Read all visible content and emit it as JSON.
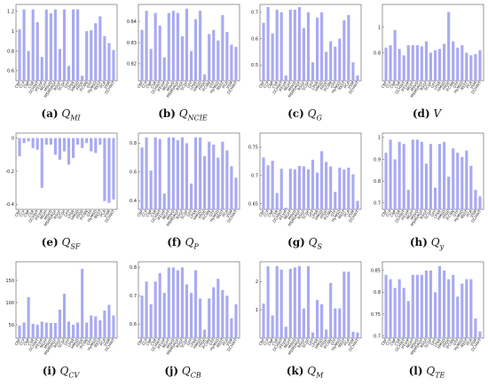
{
  "method_labels": [
    "CBF",
    "CCF",
    "CNP",
    "CSR",
    "DCHWT",
    "IFEVIP",
    "MGFF",
    "MSVD",
    "MSMSRGF",
    "RSGF",
    "SCDF",
    "GFF",
    "LPSR",
    "HMSD",
    "FPDE",
    "IFCNN",
    "GTF",
    "HyMSD",
    "NSST",
    "PCA",
    "VSM",
    "DCHWT"
  ],
  "chart_data": [
    {
      "type": "bar",
      "label": "(a)",
      "metric": "Q",
      "sub": "MI",
      "yticks": [
        0.6,
        0.8,
        1,
        1.2
      ],
      "ylim": [
        0.5,
        1.27
      ],
      "values": [
        1.02,
        1.22,
        0.8,
        1.22,
        1.09,
        0.74,
        1.22,
        1.18,
        1.22,
        0.82,
        1.22,
        0.65,
        1.22,
        1.22,
        0.55,
        1.0,
        1.01,
        1.08,
        1.15,
        0.95,
        0.88,
        0.81
      ]
    },
    {
      "type": "bar",
      "label": "(b)",
      "metric": "Q",
      "sub": "NCIE",
      "yticks": [
        0.82,
        0.83,
        0.84
      ],
      "ylim": [
        0.812,
        0.848
      ],
      "values": [
        0.836,
        0.845,
        0.827,
        0.844,
        0.838,
        0.823,
        0.844,
        0.845,
        0.844,
        0.833,
        0.846,
        0.826,
        0.841,
        0.845,
        0.815,
        0.834,
        0.836,
        0.831,
        0.843,
        0.835,
        0.829,
        0.828
      ]
    },
    {
      "type": "bar",
      "label": "(c)",
      "metric": "Q",
      "sub": "G",
      "yticks": [
        0.5,
        0.6,
        0.7
      ],
      "ylim": [
        0.44,
        0.73
      ],
      "values": [
        0.66,
        0.72,
        0.62,
        0.71,
        0.7,
        0.46,
        0.71,
        0.71,
        0.72,
        0.64,
        0.7,
        0.51,
        0.68,
        0.7,
        0.55,
        0.59,
        0.57,
        0.6,
        0.67,
        0.69,
        0.51,
        0.46
      ]
    },
    {
      "type": "bar",
      "label": "(d)",
      "metric": "V",
      "sub": "",
      "ylim": [
        0.58,
        1.18
      ],
      "yticks": [
        0.8,
        1
      ],
      "values": [
        0.84,
        0.86,
        0.98,
        0.83,
        0.78,
        0.86,
        0.86,
        0.86,
        0.85,
        0.89,
        0.8,
        0.82,
        0.83,
        0.87,
        1.12,
        0.89,
        0.84,
        0.86,
        0.8,
        0.78,
        0.79,
        0.82
      ]
    },
    {
      "type": "bar",
      "label": "(e)",
      "metric": "Q",
      "sub": "SF",
      "yticks": [
        -0.4,
        -0.2,
        0
      ],
      "ylim": [
        -0.43,
        0.03
      ],
      "values": [
        -0.11,
        -0.03,
        -0.02,
        -0.06,
        -0.07,
        -0.3,
        -0.04,
        -0.04,
        -0.1,
        -0.13,
        -0.08,
        -0.16,
        -0.12,
        -0.04,
        -0.06,
        -0.03,
        -0.08,
        -0.09,
        -0.04,
        -0.38,
        -0.39,
        -0.37
      ]
    },
    {
      "type": "bar",
      "label": "(f)",
      "metric": "Q",
      "sub": "P",
      "yticks": [
        0.4,
        0.6,
        0.8
      ],
      "ylim": [
        0.34,
        0.87
      ],
      "values": [
        0.77,
        0.84,
        0.61,
        0.84,
        0.83,
        0.45,
        0.84,
        0.84,
        0.82,
        0.84,
        0.8,
        0.52,
        0.84,
        0.84,
        0.71,
        0.81,
        0.79,
        0.7,
        0.81,
        0.75,
        0.64,
        0.56
      ]
    },
    {
      "type": "bar",
      "label": "(g)",
      "metric": "Q",
      "sub": "S",
      "yticks": [
        0.65,
        0.7,
        0.75
      ],
      "ylim": [
        0.64,
        0.775
      ],
      "values": [
        0.732,
        0.718,
        0.726,
        0.669,
        0.712,
        0.643,
        0.712,
        0.711,
        0.717,
        0.716,
        0.711,
        0.728,
        0.705,
        0.743,
        0.724,
        0.716,
        0.671,
        0.714,
        0.711,
        0.714,
        0.702,
        0.655
      ]
    },
    {
      "type": "bar",
      "label": "(h)",
      "metric": "Q",
      "sub": "y",
      "yticks": [
        0.7,
        0.8,
        0.9,
        1
      ],
      "ylim": [
        0.67,
        1.02
      ],
      "values": [
        0.93,
        0.99,
        0.9,
        0.98,
        0.97,
        0.76,
        0.99,
        0.99,
        0.98,
        0.88,
        0.97,
        0.77,
        0.97,
        0.98,
        0.82,
        0.95,
        0.93,
        0.91,
        0.94,
        0.87,
        0.76,
        0.73
      ]
    },
    {
      "type": "bar",
      "label": "(i)",
      "metric": "Q",
      "sub": "CV",
      "yticks": [
        50,
        100,
        150
      ],
      "ylim": [
        20,
        192
      ],
      "values": [
        48,
        55,
        112,
        52,
        50,
        57,
        55,
        54,
        54,
        84,
        120,
        57,
        50,
        55,
        176,
        55,
        71,
        69,
        60,
        82,
        95,
        71
      ]
    },
    {
      "type": "bar",
      "label": "(j)",
      "metric": "Q",
      "sub": "CB",
      "yticks": [
        0.6,
        0.7,
        0.8
      ],
      "ylim": [
        0.55,
        0.82
      ],
      "values": [
        0.7,
        0.75,
        0.67,
        0.75,
        0.78,
        0.71,
        0.8,
        0.8,
        0.79,
        0.8,
        0.74,
        0.71,
        0.79,
        0.69,
        0.58,
        0.69,
        0.73,
        0.76,
        0.72,
        0.7,
        0.62,
        0.67
      ]
    },
    {
      "type": "bar",
      "label": "(k)",
      "metric": "Q",
      "sub": "M",
      "yticks": [
        1,
        2
      ],
      "ylim": [
        0,
        2.7
      ],
      "values": [
        1.22,
        2.54,
        0.8,
        2.55,
        2.42,
        0.4,
        2.45,
        2.5,
        2.55,
        1.05,
        2.55,
        0.2,
        1.35,
        1.2,
        0.3,
        1.95,
        1.05,
        1.05,
        2.35,
        2.35,
        0.22,
        0.2
      ]
    },
    {
      "type": "bar",
      "label": "(l)",
      "metric": "Q",
      "sub": "TE",
      "yticks": [
        0.7,
        0.75,
        0.8,
        0.85
      ],
      "ylim": [
        0.695,
        0.87
      ],
      "values": [
        0.84,
        0.83,
        0.81,
        0.83,
        0.81,
        0.78,
        0.84,
        0.84,
        0.84,
        0.85,
        0.85,
        0.8,
        0.86,
        0.85,
        0.83,
        0.84,
        0.79,
        0.82,
        0.83,
        0.83,
        0.74,
        0.71
      ]
    }
  ]
}
